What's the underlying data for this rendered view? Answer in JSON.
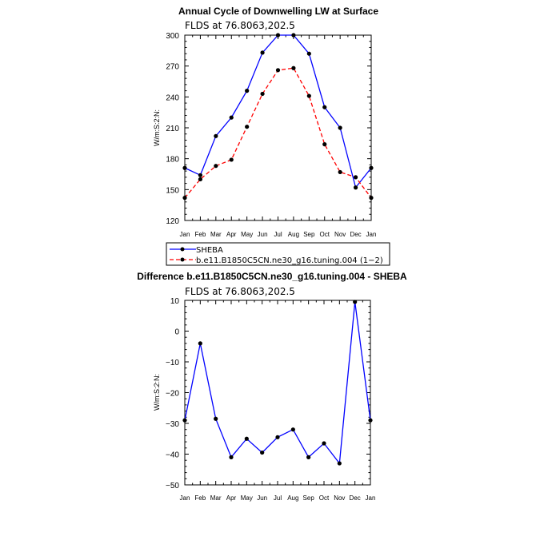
{
  "chart_data": [
    {
      "type": "line",
      "title": "Annual Cycle of Downwelling LW at Surface",
      "subtitle": "FLDS at 76.8063,202.5",
      "ylabel": "W/m:S:2:N:",
      "categories": [
        "Jan",
        "Feb",
        "Mar",
        "Apr",
        "May",
        "Jun",
        "Jul",
        "Aug",
        "Sep",
        "Oct",
        "Nov",
        "Dec",
        "Jan"
      ],
      "ylim": [
        120,
        300
      ],
      "yticks": [
        "120",
        "150",
        "180",
        "210",
        "240",
        "270",
        "300"
      ],
      "series": [
        {
          "name": "SHEBA",
          "color": "#0000ff",
          "dash": "solid",
          "values": [
            171,
            164,
            202,
            220,
            246,
            283,
            300,
            300,
            282,
            230,
            210,
            152,
            171
          ]
        },
        {
          "name": "b.e11.B1850C5CN.ne30_g16.tuning.004 (1−2)",
          "color": "#ff0000",
          "dash": "dashed",
          "values": [
            142,
            160,
            173,
            179,
            211,
            243,
            266,
            268,
            241,
            194,
            167,
            162,
            142
          ]
        }
      ],
      "legend": "below"
    },
    {
      "type": "line",
      "title": "Difference b.e11.B1850C5CN.ne30_g16.tuning.004 - SHEBA",
      "subtitle": "FLDS at 76.8063,202.5",
      "ylabel": "W/m:S:2:N:",
      "categories": [
        "Jan",
        "Feb",
        "Mar",
        "Apr",
        "May",
        "Jun",
        "Jul",
        "Aug",
        "Sep",
        "Oct",
        "Nov",
        "Dec",
        "Jan"
      ],
      "ylim": [
        -50,
        10
      ],
      "yticks": [
        "−50",
        "−40",
        "−30",
        "−20",
        "−10",
        "0",
        "10"
      ],
      "series": [
        {
          "color": "#0000ff",
          "dash": "solid",
          "values": [
            -29,
            -4,
            -28.5,
            -41,
            -35,
            -39.5,
            -34.5,
            -32,
            -41,
            -36.5,
            -43,
            9.5,
            -29
          ]
        }
      ]
    }
  ]
}
